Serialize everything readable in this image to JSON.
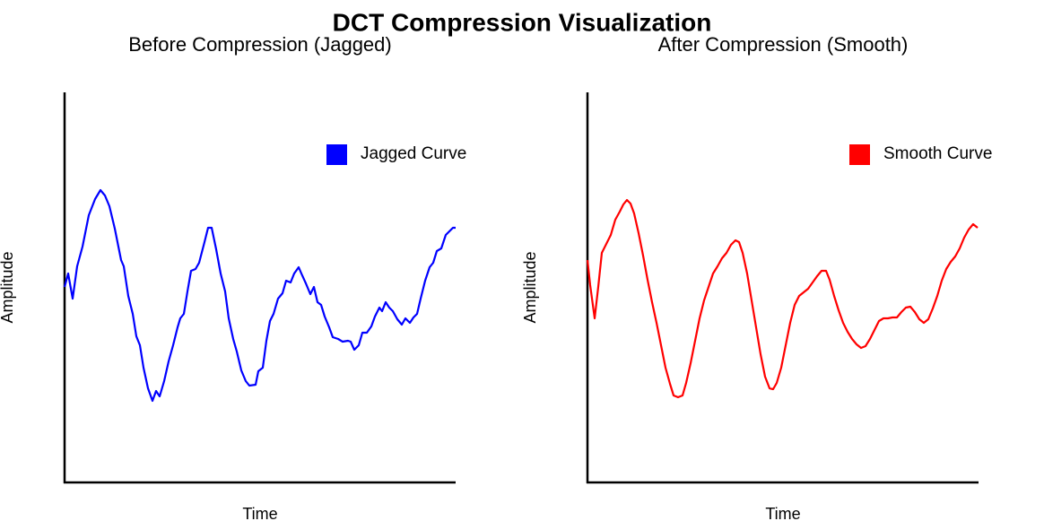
{
  "title": "DCT Compression Visualization",
  "chart_data": [
    {
      "type": "line",
      "title": "Before Compression (Jagged)",
      "xlabel": "Time",
      "ylabel": "Amplitude",
      "x": [
        0,
        4,
        9,
        14,
        20,
        27,
        34,
        40,
        45,
        50,
        56,
        63,
        66,
        71,
        76,
        80,
        84,
        88,
        93,
        98,
        102,
        106,
        111,
        116,
        121,
        126,
        129,
        133,
        137,
        141,
        146,
        150,
        156,
        160,
        164,
        169,
        174,
        179,
        183,
        188,
        192,
        197,
        202,
        206,
        213,
        216,
        221,
        225,
        229,
        233,
        238,
        243,
        247,
        252,
        256,
        261,
        264,
        269,
        274,
        278,
        282,
        286,
        290,
        295,
        299,
        305,
        310,
        316,
        319,
        323,
        328,
        332,
        337,
        342,
        346,
        351,
        354,
        358,
        362,
        366,
        371,
        376,
        380,
        385,
        389,
        393,
        397,
        402,
        407,
        411,
        415,
        420,
        425,
        430,
        433,
        436
      ],
      "series": [
        {
          "name": "Jagged Curve",
          "color": "#0000ff",
          "values": [
            218,
            233,
            205,
            241,
            263,
            298,
            316,
            326,
            320,
            308,
            283,
            248,
            241,
            208,
            188,
            163,
            153,
            128,
            105,
            91,
            102,
            96,
            113,
            135,
            153,
            173,
            183,
            188,
            213,
            236,
            238,
            245,
            268,
            284,
            284,
            260,
            233,
            213,
            183,
            160,
            146,
            125,
            113,
            108,
            109,
            124,
            128,
            158,
            180,
            188,
            205,
            211,
            225,
            223,
            233,
            240,
            233,
            222,
            210,
            218,
            201,
            198,
            185,
            173,
            162,
            160,
            157,
            158,
            157,
            148,
            153,
            167,
            167,
            174,
            185,
            195,
            191,
            201,
            195,
            191,
            182,
            176,
            183,
            178,
            184,
            188,
            205,
            225,
            240,
            245,
            258,
            261,
            276,
            281,
            284,
            284
          ]
        }
      ],
      "xlim": [
        0,
        436
      ],
      "ylim": [
        0,
        435
      ],
      "legend": "upper right"
    },
    {
      "type": "line",
      "title": "After Compression (Smooth)",
      "xlabel": "Time",
      "ylabel": "Amplitude",
      "x": [
        0,
        3,
        8,
        12,
        16,
        21,
        26,
        31,
        36,
        40,
        44,
        48,
        52,
        57,
        62,
        67,
        72,
        77,
        82,
        87,
        92,
        96,
        101,
        106,
        110,
        115,
        120,
        125,
        130,
        135,
        140,
        145,
        150,
        155,
        160,
        165,
        169,
        173,
        178,
        183,
        188,
        193,
        198,
        203,
        207,
        211,
        216,
        221,
        226,
        231,
        236,
        241,
        246,
        251,
        256,
        261,
        266,
        270,
        275,
        280,
        285,
        290,
        295,
        300,
        305,
        310,
        315,
        320,
        325,
        330,
        335,
        340,
        345,
        350,
        355,
        360,
        365,
        370,
        375,
        380,
        385,
        390,
        395,
        400,
        405,
        410,
        415,
        420,
        425,
        430,
        435
      ],
      "series": [
        {
          "name": "Smooth Curve",
          "color": "#ff0000",
          "values": [
            248,
            220,
            183,
            218,
            256,
            266,
            276,
            293,
            302,
            310,
            315,
            311,
            300,
            278,
            253,
            226,
            201,
            178,
            153,
            128,
            110,
            97,
            95,
            97,
            111,
            133,
            158,
            183,
            203,
            218,
            233,
            241,
            250,
            256,
            265,
            270,
            268,
            256,
            233,
            203,
            173,
            143,
            118,
            105,
            104,
            111,
            128,
            153,
            178,
            198,
            208,
            212,
            216,
            223,
            230,
            236,
            236,
            226,
            208,
            192,
            178,
            168,
            160,
            154,
            150,
            152,
            160,
            170,
            180,
            183,
            183,
            184,
            184,
            190,
            195,
            196,
            190,
            182,
            178,
            182,
            194,
            208,
            225,
            238,
            246,
            252,
            261,
            273,
            282,
            288,
            284
          ]
        }
      ],
      "xlim": [
        0,
        436
      ],
      "ylim": [
        0,
        435
      ],
      "legend": "upper right"
    }
  ]
}
